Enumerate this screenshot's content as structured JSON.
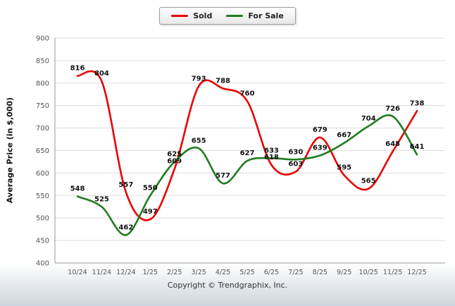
{
  "chart_data": {
    "type": "line",
    "title": "",
    "xlabel": "",
    "ylabel": "Average Price (in $,000)",
    "ylim": [
      400,
      900
    ],
    "ytick_step": 50,
    "grid": true,
    "legend_position": "top-center",
    "categories": [
      "10/24",
      "11/24",
      "12/24",
      "1/25",
      "2/25",
      "3/25",
      "4/25",
      "5/25",
      "6/25",
      "7/25",
      "8/25",
      "9/25",
      "10/25",
      "11/25",
      "12/25"
    ],
    "series": [
      {
        "name": "Sold",
        "color": "#e80000",
        "values": [
          816,
          804,
          557,
          497,
          609,
          793,
          788,
          760,
          618,
          603,
          679,
          595,
          565,
          648,
          738
        ]
      },
      {
        "name": "For Sale",
        "color": "#1e7d1e",
        "values": [
          548,
          525,
          462,
          550,
          625,
          655,
          577,
          627,
          633,
          630,
          639,
          667,
          704,
          726,
          641
        ]
      }
    ]
  },
  "footer": {
    "copyright": "Copyright © Trendgraphix, Inc."
  }
}
